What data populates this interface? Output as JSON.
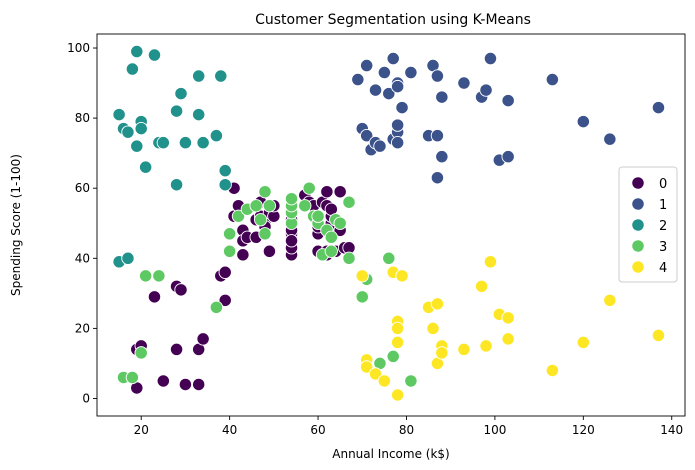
{
  "chart_data": {
    "type": "scatter",
    "title": "Customer Segmentation using K-Means",
    "xlabel": "Annual Income (k$)",
    "ylabel": "Spending Score (1-100)",
    "xlim": [
      10,
      143
    ],
    "ylim": [
      -5,
      104
    ],
    "xticks": [
      20,
      40,
      60,
      80,
      100,
      120,
      140
    ],
    "yticks": [
      0,
      20,
      40,
      60,
      80,
      100
    ],
    "grid": false,
    "legend_position": "center-right",
    "series": [
      {
        "name": "0",
        "color": "#440154",
        "points": [
          [
            19,
            3
          ],
          [
            19,
            14
          ],
          [
            20,
            15
          ],
          [
            20,
            13
          ],
          [
            23,
            29
          ],
          [
            25,
            5
          ],
          [
            28,
            14
          ],
          [
            28,
            32
          ],
          [
            29,
            31
          ],
          [
            30,
            4
          ],
          [
            33,
            4
          ],
          [
            33,
            14
          ],
          [
            34,
            17
          ],
          [
            38,
            35
          ],
          [
            39,
            36
          ],
          [
            39,
            28
          ],
          [
            41,
            60
          ],
          [
            41,
            52
          ],
          [
            42,
            55
          ],
          [
            43,
            48
          ],
          [
            43,
            41
          ],
          [
            43,
            45
          ],
          [
            44,
            46
          ],
          [
            46,
            46
          ],
          [
            46,
            51
          ],
          [
            47,
            52
          ],
          [
            47,
            56
          ],
          [
            48,
            47
          ],
          [
            48,
            50
          ],
          [
            48,
            49
          ],
          [
            49,
            42
          ],
          [
            49,
            53
          ],
          [
            50,
            52
          ],
          [
            50,
            55
          ],
          [
            54,
            41
          ],
          [
            54,
            46
          ],
          [
            54,
            47
          ],
          [
            54,
            48
          ],
          [
            54,
            51
          ],
          [
            54,
            43
          ],
          [
            54,
            45
          ],
          [
            57,
            58
          ],
          [
            58,
            56
          ],
          [
            59,
            55
          ],
          [
            60,
            42
          ],
          [
            60,
            47
          ],
          [
            60,
            49
          ],
          [
            61,
            56
          ],
          [
            62,
            59
          ],
          [
            62,
            55
          ],
          [
            62,
            41
          ],
          [
            62,
            42
          ],
          [
            63,
            50
          ],
          [
            63,
            52
          ],
          [
            63,
            54
          ],
          [
            64,
            42
          ],
          [
            65,
            59
          ],
          [
            65,
            48
          ],
          [
            66,
            43
          ],
          [
            67,
            43
          ]
        ]
      },
      {
        "name": "1",
        "color": "#3b528b",
        "points": [
          [
            69,
            91
          ],
          [
            70,
            77
          ],
          [
            71,
            95
          ],
          [
            71,
            75
          ],
          [
            72,
            71
          ],
          [
            73,
            73
          ],
          [
            73,
            88
          ],
          [
            74,
            72
          ],
          [
            75,
            93
          ],
          [
            76,
            87
          ],
          [
            77,
            97
          ],
          [
            77,
            74
          ],
          [
            78,
            90
          ],
          [
            78,
            76
          ],
          [
            78,
            89
          ],
          [
            78,
            78
          ],
          [
            78,
            73
          ],
          [
            79,
            83
          ],
          [
            81,
            93
          ],
          [
            85,
            75
          ],
          [
            86,
            95
          ],
          [
            87,
            92
          ],
          [
            87,
            75
          ],
          [
            87,
            63
          ],
          [
            88,
            86
          ],
          [
            88,
            69
          ],
          [
            93,
            90
          ],
          [
            97,
            86
          ],
          [
            98,
            88
          ],
          [
            99,
            97
          ],
          [
            101,
            68
          ],
          [
            103,
            85
          ],
          [
            103,
            69
          ],
          [
            113,
            91
          ],
          [
            120,
            79
          ],
          [
            126,
            74
          ],
          [
            137,
            83
          ]
        ]
      },
      {
        "name": "2",
        "color": "#21918c",
        "points": [
          [
            15,
            81
          ],
          [
            16,
            77
          ],
          [
            17,
            76
          ],
          [
            18,
            94
          ],
          [
            19,
            72
          ],
          [
            19,
            99
          ],
          [
            20,
            79
          ],
          [
            20,
            77
          ],
          [
            21,
            66
          ],
          [
            23,
            98
          ],
          [
            24,
            73
          ],
          [
            25,
            73
          ],
          [
            28,
            82
          ],
          [
            28,
            61
          ],
          [
            29,
            87
          ],
          [
            30,
            73
          ],
          [
            33,
            92
          ],
          [
            33,
            81
          ],
          [
            34,
            73
          ],
          [
            37,
            75
          ],
          [
            38,
            92
          ],
          [
            39,
            65
          ],
          [
            39,
            61
          ],
          [
            15,
            39
          ],
          [
            17,
            40
          ]
        ]
      },
      {
        "name": "3",
        "color": "#5ec962",
        "points": [
          [
            16,
            6
          ],
          [
            18,
            6
          ],
          [
            20,
            13
          ],
          [
            21,
            35
          ],
          [
            24,
            35
          ],
          [
            37,
            26
          ],
          [
            40,
            42
          ],
          [
            40,
            47
          ],
          [
            42,
            52
          ],
          [
            44,
            54
          ],
          [
            46,
            55
          ],
          [
            47,
            51
          ],
          [
            48,
            59
          ],
          [
            48,
            47
          ],
          [
            49,
            55
          ],
          [
            54,
            50
          ],
          [
            54,
            53
          ],
          [
            54,
            55
          ],
          [
            54,
            57
          ],
          [
            57,
            55
          ],
          [
            58,
            60
          ],
          [
            59,
            52
          ],
          [
            60,
            50
          ],
          [
            60,
            52
          ],
          [
            61,
            41
          ],
          [
            62,
            48
          ],
          [
            63,
            42
          ],
          [
            63,
            46
          ],
          [
            64,
            51
          ],
          [
            65,
            50
          ],
          [
            67,
            56
          ],
          [
            67,
            40
          ],
          [
            70,
            29
          ],
          [
            71,
            34
          ],
          [
            74,
            10
          ],
          [
            75,
            5
          ],
          [
            76,
            40
          ],
          [
            77,
            12
          ],
          [
            81,
            5
          ]
        ]
      },
      {
        "name": "4",
        "color": "#fde725",
        "points": [
          [
            70,
            35
          ],
          [
            71,
            11
          ],
          [
            71,
            9
          ],
          [
            73,
            7
          ],
          [
            75,
            5
          ],
          [
            77,
            36
          ],
          [
            78,
            22
          ],
          [
            78,
            20
          ],
          [
            78,
            16
          ],
          [
            78,
            1
          ],
          [
            79,
            35
          ],
          [
            85,
            26
          ],
          [
            86,
            20
          ],
          [
            87,
            27
          ],
          [
            87,
            10
          ],
          [
            88,
            15
          ],
          [
            88,
            13
          ],
          [
            93,
            14
          ],
          [
            97,
            32
          ],
          [
            98,
            15
          ],
          [
            99,
            39
          ],
          [
            101,
            24
          ],
          [
            103,
            17
          ],
          [
            103,
            23
          ],
          [
            113,
            8
          ],
          [
            120,
            16
          ],
          [
            126,
            28
          ],
          [
            137,
            18
          ]
        ]
      }
    ]
  }
}
